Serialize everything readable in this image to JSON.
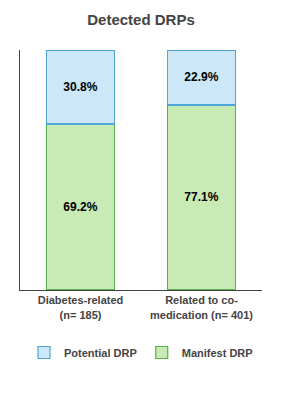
{
  "chart_data": {
    "type": "bar",
    "title": "Detected DRPs",
    "categories": [
      "Diabetes-related\n(n= 185)",
      "Related to co-\nmedication (n= 401)"
    ],
    "series": [
      {
        "name": "Manifest DRP",
        "color": "#c8eab5",
        "values": [
          69.2,
          77.1
        ],
        "value_labels": [
          "69.2%",
          "77.1%"
        ]
      },
      {
        "name": "Potential DRP",
        "color": "#cce8f8",
        "values": [
          30.8,
          22.9
        ],
        "value_labels": [
          "30.8%",
          "22.9%"
        ]
      }
    ],
    "stacked": true,
    "data_labels": true,
    "ylim": [
      0,
      100
    ],
    "tick_labels": "x",
    "grid": false,
    "legend": "bottom"
  }
}
